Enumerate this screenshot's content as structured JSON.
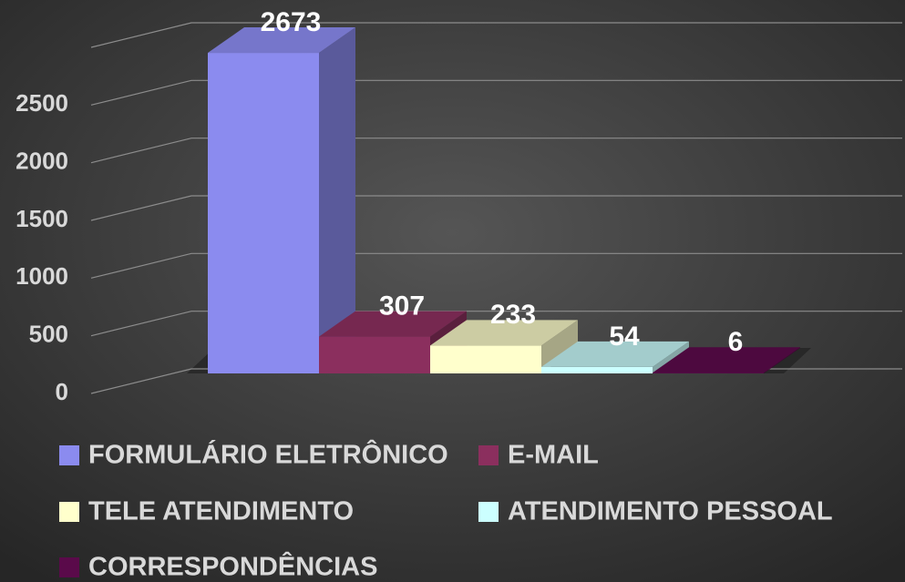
{
  "chart_data": {
    "type": "bar3d",
    "series": [
      {
        "name": "FORMULÁRIO ELETRÔNICO",
        "color": "#8b8bef",
        "values": [
          2673
        ]
      },
      {
        "name": "E-MAIL",
        "color": "#8b2f5e",
        "values": [
          307
        ]
      },
      {
        "name": "TELE ATENDIMENTO",
        "color": "#ffffcc",
        "values": [
          233
        ]
      },
      {
        "name": "ATENDIMENTO PESSOAL",
        "color": "#ccffff",
        "values": [
          54
        ]
      },
      {
        "name": "CORRESPONDÊNCIAS",
        "color": "#5a0a4a",
        "values": [
          6
        ]
      }
    ],
    "ylim": [
      0,
      3000
    ],
    "yticks": [
      0,
      500,
      1000,
      1500,
      2000,
      2500
    ],
    "grid": true
  }
}
